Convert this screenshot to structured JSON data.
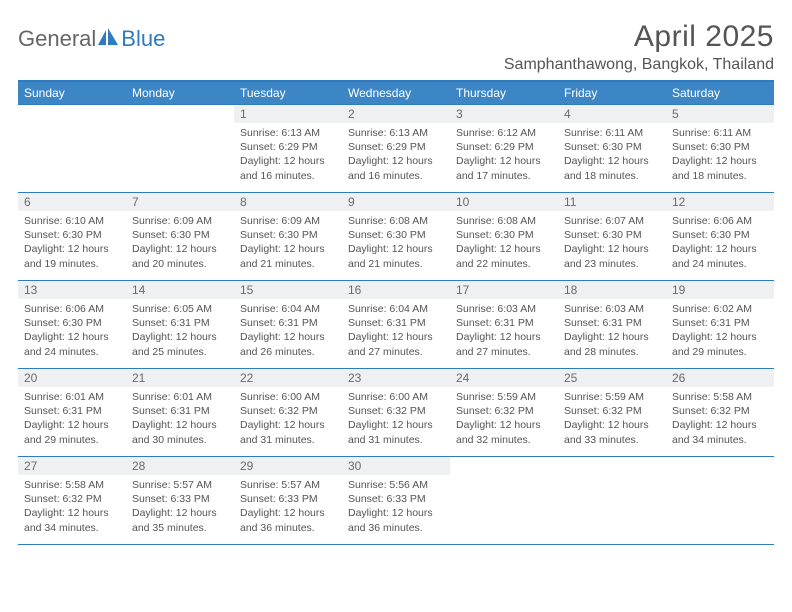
{
  "brand": {
    "part1": "General",
    "part2": "Blue"
  },
  "title": "April 2025",
  "location": "Samphanthawong, Bangkok, Thailand",
  "colors": {
    "header_bg": "#3d86c6",
    "border": "#2f7bbf",
    "daynum_bg": "#eef0f1",
    "text": "#555555"
  },
  "weekdays": [
    "Sunday",
    "Monday",
    "Tuesday",
    "Wednesday",
    "Thursday",
    "Friday",
    "Saturday"
  ],
  "weeks": [
    [
      {
        "n": "",
        "sr": "",
        "ss": "",
        "dl": ""
      },
      {
        "n": "",
        "sr": "",
        "ss": "",
        "dl": ""
      },
      {
        "n": "1",
        "sr": "Sunrise: 6:13 AM",
        "ss": "Sunset: 6:29 PM",
        "dl": "Daylight: 12 hours and 16 minutes."
      },
      {
        "n": "2",
        "sr": "Sunrise: 6:13 AM",
        "ss": "Sunset: 6:29 PM",
        "dl": "Daylight: 12 hours and 16 minutes."
      },
      {
        "n": "3",
        "sr": "Sunrise: 6:12 AM",
        "ss": "Sunset: 6:29 PM",
        "dl": "Daylight: 12 hours and 17 minutes."
      },
      {
        "n": "4",
        "sr": "Sunrise: 6:11 AM",
        "ss": "Sunset: 6:30 PM",
        "dl": "Daylight: 12 hours and 18 minutes."
      },
      {
        "n": "5",
        "sr": "Sunrise: 6:11 AM",
        "ss": "Sunset: 6:30 PM",
        "dl": "Daylight: 12 hours and 18 minutes."
      }
    ],
    [
      {
        "n": "6",
        "sr": "Sunrise: 6:10 AM",
        "ss": "Sunset: 6:30 PM",
        "dl": "Daylight: 12 hours and 19 minutes."
      },
      {
        "n": "7",
        "sr": "Sunrise: 6:09 AM",
        "ss": "Sunset: 6:30 PM",
        "dl": "Daylight: 12 hours and 20 minutes."
      },
      {
        "n": "8",
        "sr": "Sunrise: 6:09 AM",
        "ss": "Sunset: 6:30 PM",
        "dl": "Daylight: 12 hours and 21 minutes."
      },
      {
        "n": "9",
        "sr": "Sunrise: 6:08 AM",
        "ss": "Sunset: 6:30 PM",
        "dl": "Daylight: 12 hours and 21 minutes."
      },
      {
        "n": "10",
        "sr": "Sunrise: 6:08 AM",
        "ss": "Sunset: 6:30 PM",
        "dl": "Daylight: 12 hours and 22 minutes."
      },
      {
        "n": "11",
        "sr": "Sunrise: 6:07 AM",
        "ss": "Sunset: 6:30 PM",
        "dl": "Daylight: 12 hours and 23 minutes."
      },
      {
        "n": "12",
        "sr": "Sunrise: 6:06 AM",
        "ss": "Sunset: 6:30 PM",
        "dl": "Daylight: 12 hours and 24 minutes."
      }
    ],
    [
      {
        "n": "13",
        "sr": "Sunrise: 6:06 AM",
        "ss": "Sunset: 6:30 PM",
        "dl": "Daylight: 12 hours and 24 minutes."
      },
      {
        "n": "14",
        "sr": "Sunrise: 6:05 AM",
        "ss": "Sunset: 6:31 PM",
        "dl": "Daylight: 12 hours and 25 minutes."
      },
      {
        "n": "15",
        "sr": "Sunrise: 6:04 AM",
        "ss": "Sunset: 6:31 PM",
        "dl": "Daylight: 12 hours and 26 minutes."
      },
      {
        "n": "16",
        "sr": "Sunrise: 6:04 AM",
        "ss": "Sunset: 6:31 PM",
        "dl": "Daylight: 12 hours and 27 minutes."
      },
      {
        "n": "17",
        "sr": "Sunrise: 6:03 AM",
        "ss": "Sunset: 6:31 PM",
        "dl": "Daylight: 12 hours and 27 minutes."
      },
      {
        "n": "18",
        "sr": "Sunrise: 6:03 AM",
        "ss": "Sunset: 6:31 PM",
        "dl": "Daylight: 12 hours and 28 minutes."
      },
      {
        "n": "19",
        "sr": "Sunrise: 6:02 AM",
        "ss": "Sunset: 6:31 PM",
        "dl": "Daylight: 12 hours and 29 minutes."
      }
    ],
    [
      {
        "n": "20",
        "sr": "Sunrise: 6:01 AM",
        "ss": "Sunset: 6:31 PM",
        "dl": "Daylight: 12 hours and 29 minutes."
      },
      {
        "n": "21",
        "sr": "Sunrise: 6:01 AM",
        "ss": "Sunset: 6:31 PM",
        "dl": "Daylight: 12 hours and 30 minutes."
      },
      {
        "n": "22",
        "sr": "Sunrise: 6:00 AM",
        "ss": "Sunset: 6:32 PM",
        "dl": "Daylight: 12 hours and 31 minutes."
      },
      {
        "n": "23",
        "sr": "Sunrise: 6:00 AM",
        "ss": "Sunset: 6:32 PM",
        "dl": "Daylight: 12 hours and 31 minutes."
      },
      {
        "n": "24",
        "sr": "Sunrise: 5:59 AM",
        "ss": "Sunset: 6:32 PM",
        "dl": "Daylight: 12 hours and 32 minutes."
      },
      {
        "n": "25",
        "sr": "Sunrise: 5:59 AM",
        "ss": "Sunset: 6:32 PM",
        "dl": "Daylight: 12 hours and 33 minutes."
      },
      {
        "n": "26",
        "sr": "Sunrise: 5:58 AM",
        "ss": "Sunset: 6:32 PM",
        "dl": "Daylight: 12 hours and 34 minutes."
      }
    ],
    [
      {
        "n": "27",
        "sr": "Sunrise: 5:58 AM",
        "ss": "Sunset: 6:32 PM",
        "dl": "Daylight: 12 hours and 34 minutes."
      },
      {
        "n": "28",
        "sr": "Sunrise: 5:57 AM",
        "ss": "Sunset: 6:33 PM",
        "dl": "Daylight: 12 hours and 35 minutes."
      },
      {
        "n": "29",
        "sr": "Sunrise: 5:57 AM",
        "ss": "Sunset: 6:33 PM",
        "dl": "Daylight: 12 hours and 36 minutes."
      },
      {
        "n": "30",
        "sr": "Sunrise: 5:56 AM",
        "ss": "Sunset: 6:33 PM",
        "dl": "Daylight: 12 hours and 36 minutes."
      },
      {
        "n": "",
        "sr": "",
        "ss": "",
        "dl": ""
      },
      {
        "n": "",
        "sr": "",
        "ss": "",
        "dl": ""
      },
      {
        "n": "",
        "sr": "",
        "ss": "",
        "dl": ""
      }
    ]
  ]
}
